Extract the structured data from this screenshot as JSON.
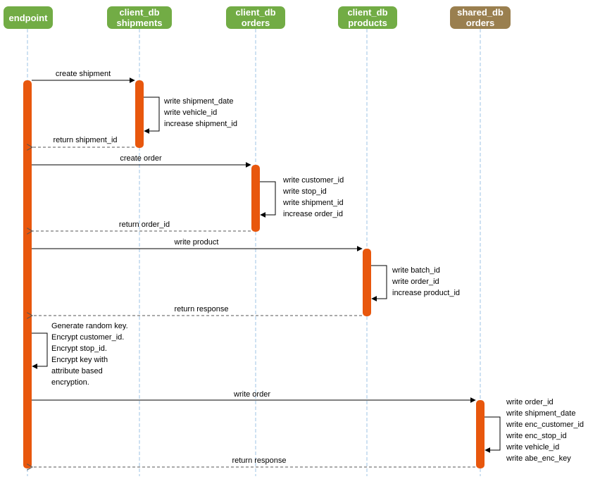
{
  "participants": {
    "endpoint": {
      "line1": "endpoint",
      "line2": ""
    },
    "shipments": {
      "line1": "client_db",
      "line2": "shipments"
    },
    "orders": {
      "line1": "client_db",
      "line2": "orders"
    },
    "products": {
      "line1": "client_db",
      "line2": "products"
    },
    "shared_orders": {
      "line1": "shared_db",
      "line2": "orders"
    }
  },
  "messages": {
    "create_shipment": "create shipment",
    "return_shipment_id": "return shipment_id",
    "create_order": "create order",
    "return_order_id": "return order_id",
    "write_product": "write product",
    "return_response_products": "return response",
    "write_order": "write order",
    "return_response_shared": "return response"
  },
  "notes": {
    "shipments_self": [
      "write shipment_date",
      "write vehicle_id",
      "increase shipment_id"
    ],
    "orders_self": [
      "write customer_id",
      "write stop_id",
      "write shipment_id",
      "increase order_id"
    ],
    "products_self": [
      "write batch_id",
      "write order_id",
      "increase product_id"
    ],
    "endpoint_self": [
      "Generate random key.",
      "Encrypt customer_id.",
      "Encrypt stop_id.",
      "Encrypt key with",
      "attribute based",
      "encryption."
    ],
    "shared_self": [
      "write order_id",
      "write shipment_date",
      "write enc_customer_id",
      "write enc_stop_id",
      "write vehicle_id",
      "write abe_enc_key"
    ]
  },
  "colors": {
    "client_db": "#72ac45",
    "shared_db": "#9a7f4f",
    "activation": "#e8570d",
    "lifeline": "#9dc3e6"
  }
}
